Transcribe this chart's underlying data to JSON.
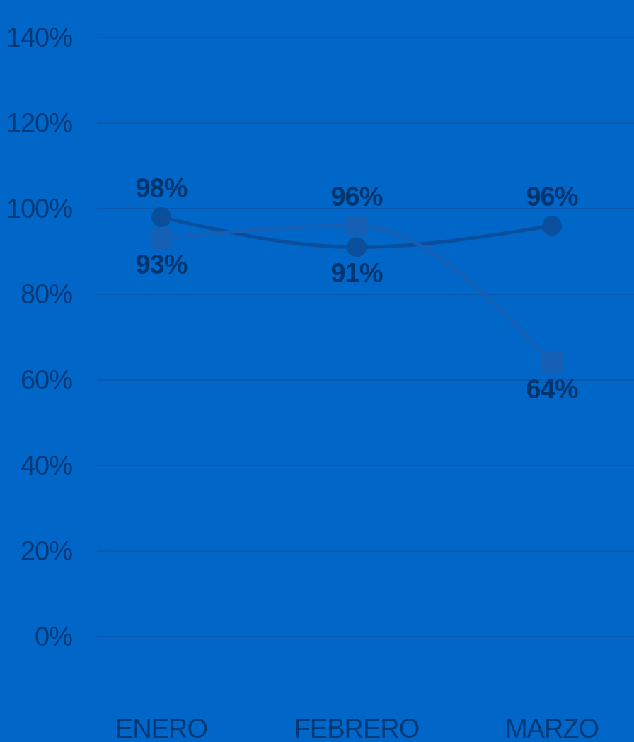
{
  "chart_data": {
    "type": "line",
    "categories": [
      "ENERO",
      "FEBRERO",
      "MARZO"
    ],
    "series": [
      {
        "color": "#0a4f9c",
        "marker": "circle",
        "values": [
          98,
          91,
          96
        ],
        "value_labels": [
          "98%",
          "91%",
          "96%"
        ]
      },
      {
        "color": "#1560b5",
        "marker": "square",
        "values": [
          93,
          96,
          64
        ],
        "value_labels": [
          "93%",
          "96%",
          "64%"
        ]
      }
    ],
    "ylim": [
      0,
      140
    ],
    "yticks": [
      {
        "value": 0,
        "label": "0%"
      },
      {
        "value": 20,
        "label": "20%"
      },
      {
        "value": 40,
        "label": "40%"
      },
      {
        "value": 60,
        "label": "60%"
      },
      {
        "value": 80,
        "label": "80%"
      },
      {
        "value": 100,
        "label": "100%"
      },
      {
        "value": 120,
        "label": "120%"
      },
      {
        "value": 140,
        "label": "140%"
      }
    ],
    "grid": "y"
  }
}
